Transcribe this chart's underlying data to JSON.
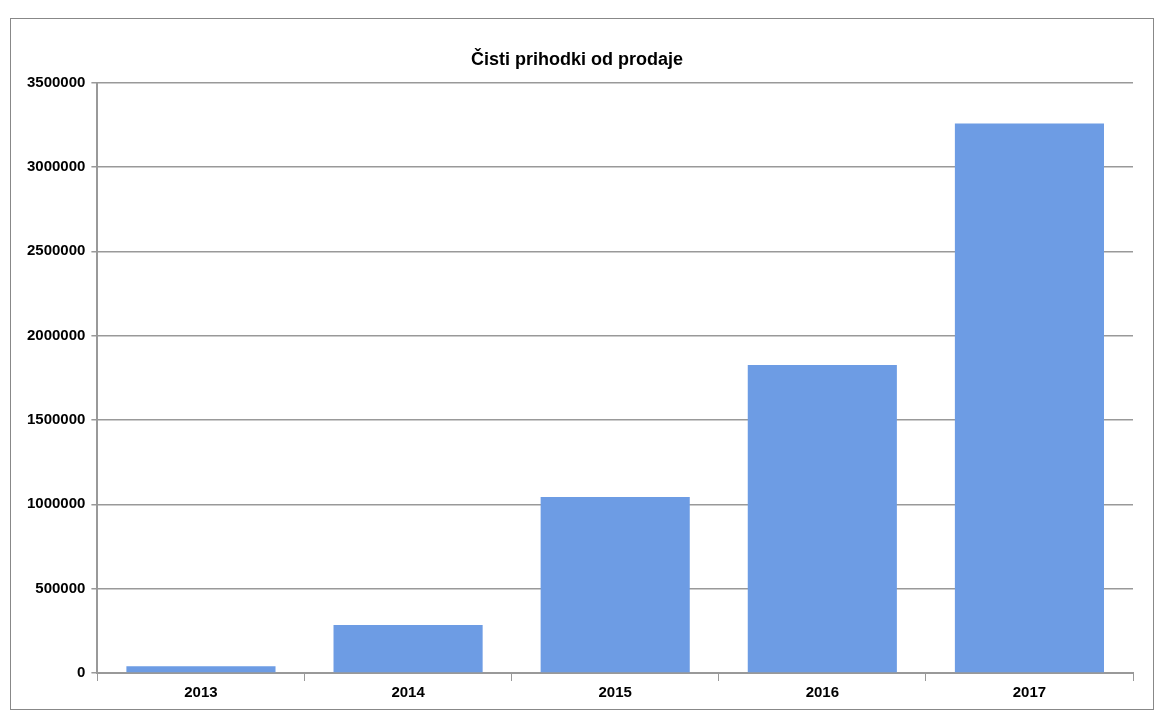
{
  "chart_data": {
    "type": "bar",
    "title": "Čisti prihodki od prodaje",
    "categories": [
      "2013",
      "2014",
      "2015",
      "2016",
      "2017"
    ],
    "values": [
      40000,
      285000,
      1043000,
      1826000,
      3257000
    ],
    "color": "#6d9ce4",
    "ylim": [
      0,
      3500000
    ],
    "yticks": [
      0,
      500000,
      1000000,
      1500000,
      2000000,
      2500000,
      3000000,
      3500000
    ],
    "grid": "y"
  }
}
